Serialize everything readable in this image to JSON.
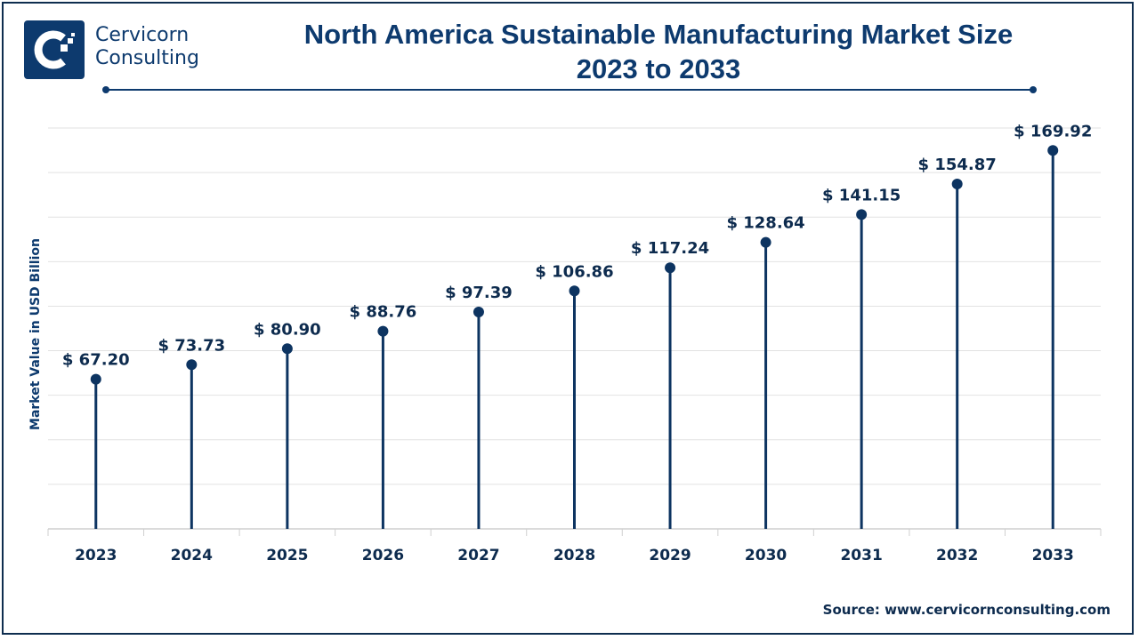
{
  "brand": {
    "line1": "Cervicorn",
    "line2": "Consulting",
    "logo_icon": "cervicorn-c-logo-icon"
  },
  "colors": {
    "primary": "#0d3a6e",
    "stem": "#0d3461",
    "grid": "#e2e2e2",
    "axis": "#cfcfcf"
  },
  "source": "Source: www.cervicornconsulting.com",
  "chart_data": {
    "type": "lollipop",
    "title": "North America Sustainable Manufacturing Market Size",
    "subtitle": "2023 to 2033",
    "xlabel": "",
    "ylabel": "Market Value in USD Billion",
    "categories": [
      "2023",
      "2024",
      "2025",
      "2026",
      "2027",
      "2028",
      "2029",
      "2030",
      "2031",
      "2032",
      "2033"
    ],
    "values": [
      67.2,
      73.73,
      80.9,
      88.76,
      97.39,
      106.86,
      117.24,
      128.64,
      141.15,
      154.87,
      169.92
    ],
    "data_labels": [
      "$ 67.20",
      "$ 73.73",
      "$ 80.90",
      "$ 88.76",
      "$ 97.39",
      "$ 106.86",
      "$ 117.24",
      "$ 128.64",
      "$ 141.15",
      "$ 154.87",
      "$ 169.92"
    ],
    "ylim": [
      0,
      180
    ],
    "ytick_step": 20,
    "ytick_labels_visible": false,
    "grid": true,
    "legend": "none"
  }
}
